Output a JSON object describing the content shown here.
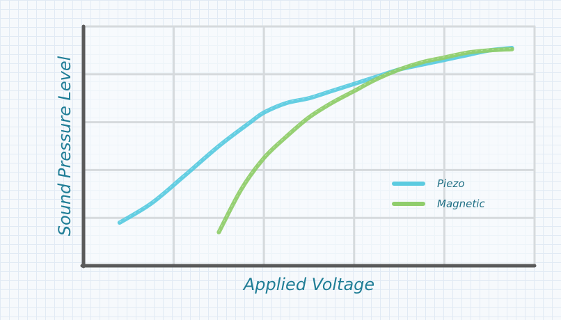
{
  "chart_data": {
    "type": "line",
    "title": "",
    "xlabel": "Applied Voltage",
    "ylabel": "Sound Pressure Level",
    "xlim": [
      0,
      100
    ],
    "ylim": [
      0,
      100
    ],
    "grid": true,
    "tick_labels": false,
    "legend_position": "right",
    "series": [
      {
        "name": "Piezo",
        "color": "#5ccbe0",
        "x": [
          8,
          15,
          22,
          30,
          37,
          40,
          45,
          50,
          55,
          60,
          65,
          70,
          75,
          80,
          85,
          90,
          95
        ],
        "y": [
          18,
          26,
          37,
          50,
          60,
          64,
          68,
          70,
          73,
          76,
          79,
          82,
          84,
          86,
          88,
          90,
          91
        ]
      },
      {
        "name": "Magnetic",
        "color": "#90cd6c",
        "x": [
          30,
          35,
          40,
          45,
          50,
          55,
          60,
          65,
          70,
          75,
          80,
          85,
          90,
          95
        ],
        "y": [
          14,
          32,
          45,
          54,
          62,
          68,
          73,
          78,
          82,
          85,
          87,
          89,
          90,
          90.5
        ]
      }
    ]
  }
}
